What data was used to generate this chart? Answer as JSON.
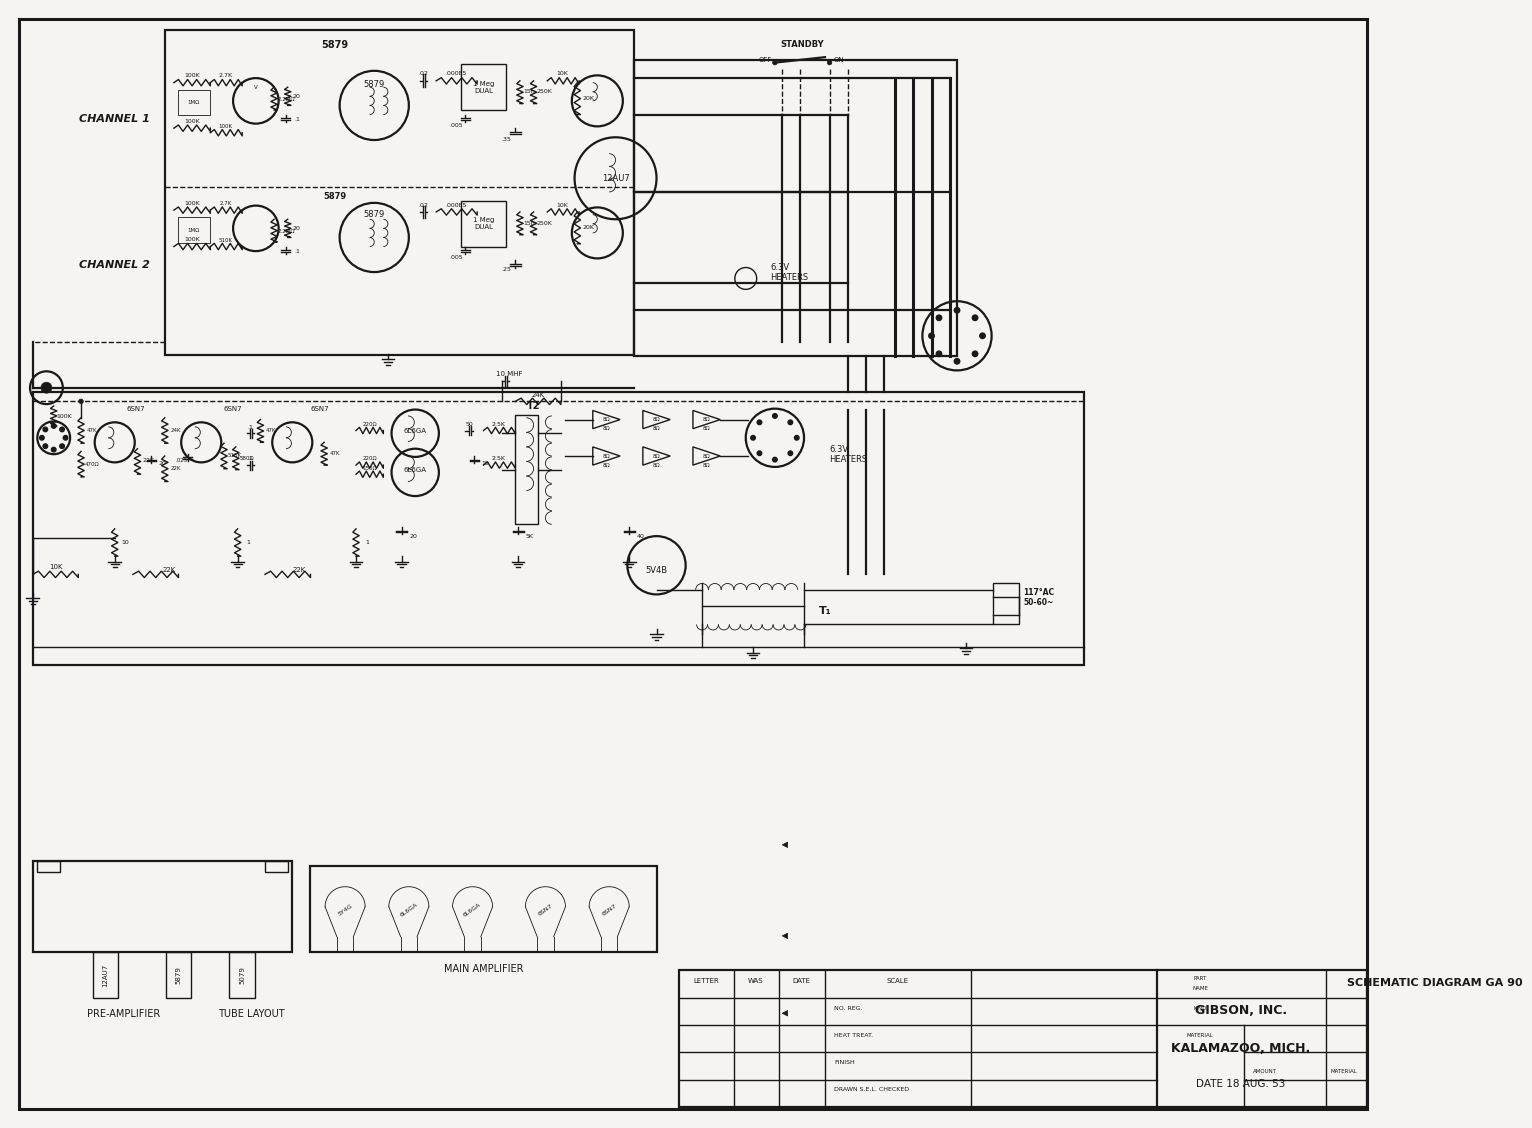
{
  "title": "SCHEMATIC DIAGRAM GA 90",
  "company": "GIBSON, INC.",
  "location": "KALAMAZOO, MICH.",
  "date": "18 AUG. 53",
  "drawn_by": "S.E.L.",
  "bg_color": "#f5f4f0",
  "line_color": "#1a1818",
  "channel1_label": "CHANNEL 1",
  "channel2_label": "CHANNEL 2",
  "standby_label": "STANDBY",
  "off_label": "OFF",
  "on_label": "ON",
  "heaters_label": "6.3V\nHEATERS",
  "heaters2_label": "6.3V\nHEATERS",
  "pre_amp_label": "PRE-AMPLIFIER",
  "tube_layout_label": "TUBE LAYOUT",
  "main_amp_label": "MAIN AMPLIFIER",
  "power_label": "117°AC\n50-60~",
  "rectifier_label": "5V4B",
  "tube_12au7": "12AU7",
  "tube_5879": "5879",
  "tube_6l6ga": "6L6GA",
  "tube_6sn7": "6SN7",
  "tube_5y4g": "5Y4G"
}
